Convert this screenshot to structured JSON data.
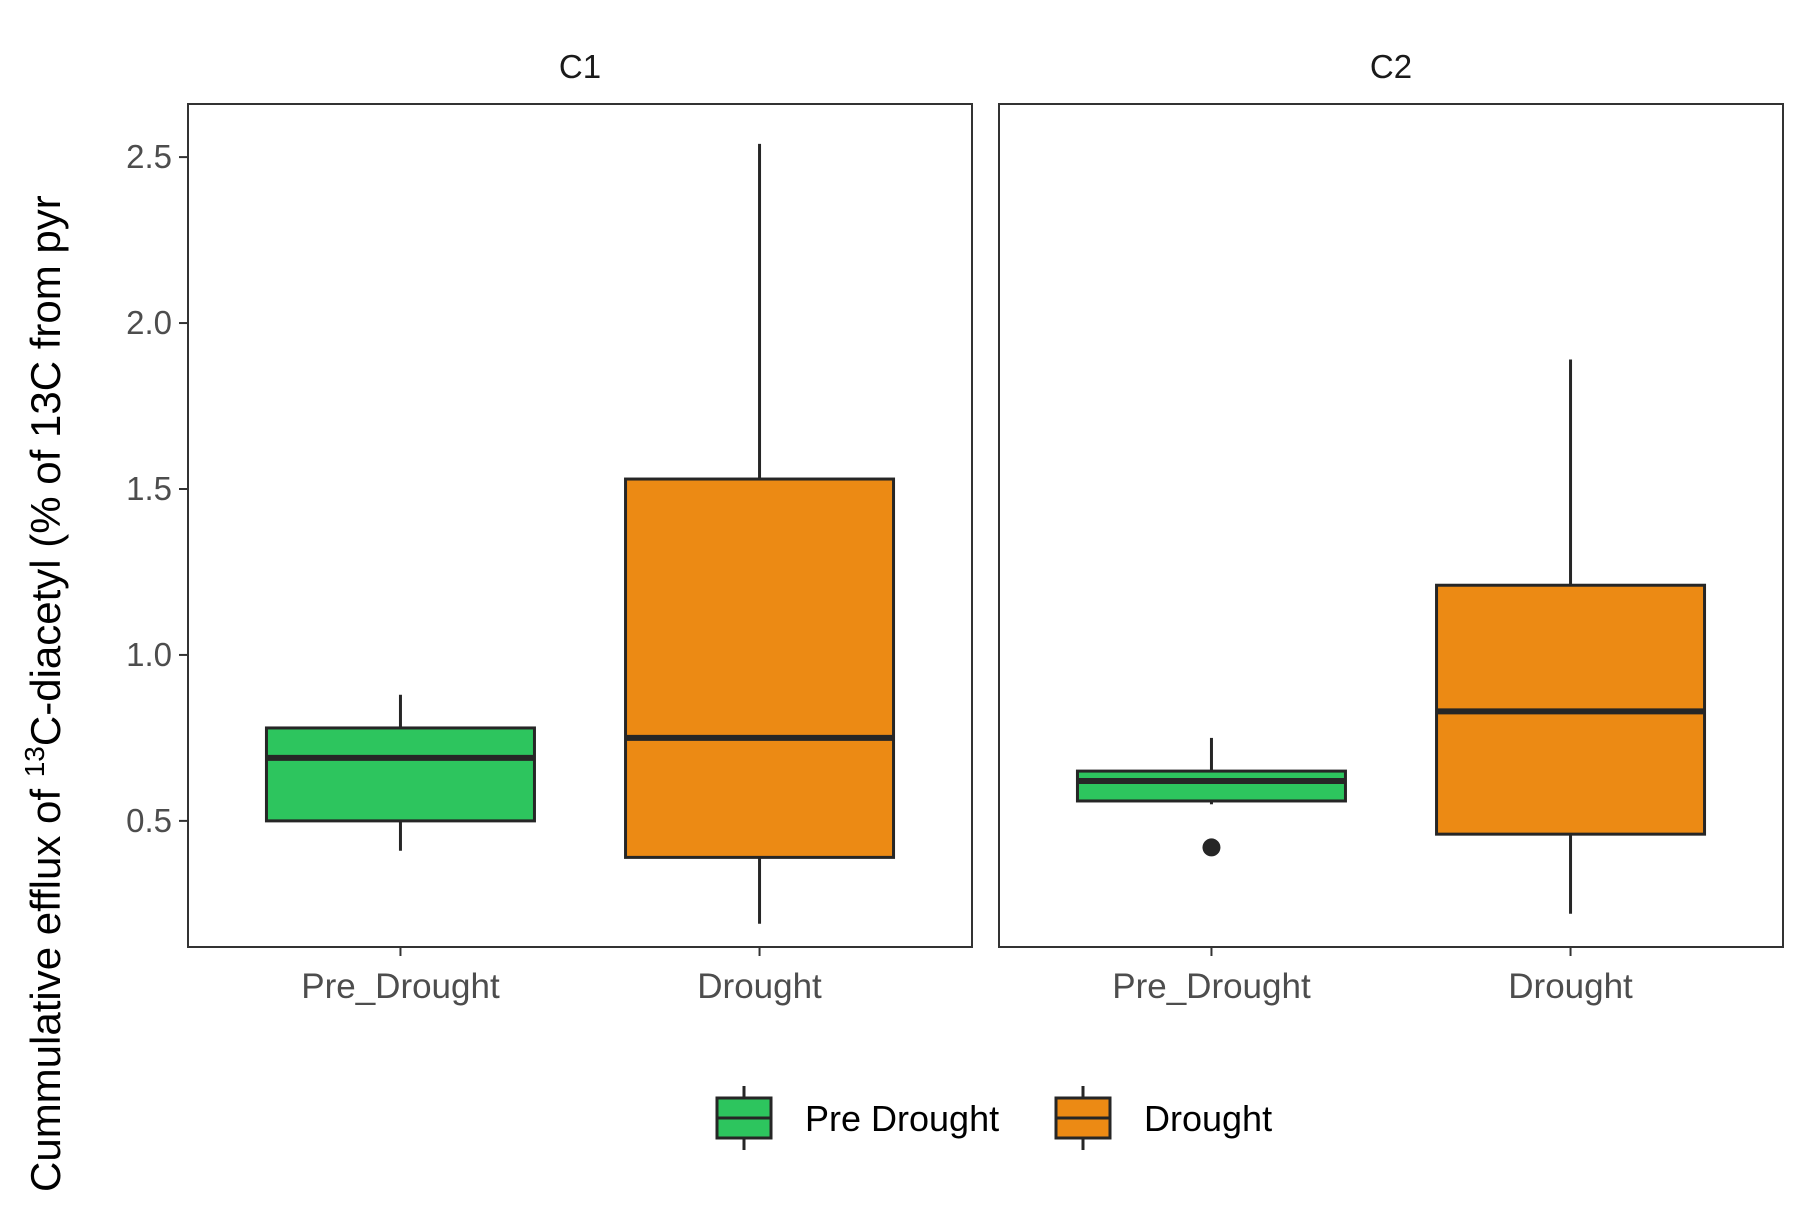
{
  "chart_data": {
    "type": "boxplot",
    "ylabel_prefix": "Cummulative efflux of ",
    "ylabel_superscript": "13",
    "ylabel_suffix": "C-diacetyl (% of 13C from pyr",
    "yticks": [
      "0.5",
      "1.0",
      "1.5",
      "2.0",
      "2.5"
    ],
    "ytick_values": [
      0.5,
      1.0,
      1.5,
      2.0,
      2.5
    ],
    "ylim": [
      0.12,
      2.66
    ],
    "categories": [
      "Pre_Drought",
      "Drought"
    ],
    "grid": false,
    "legend_position": "bottom",
    "legend": [
      {
        "label": "Pre Drought",
        "color": "#2DC55E"
      },
      {
        "label": "Drought",
        "color": "#EC8A14"
      }
    ],
    "panels": [
      {
        "title": "C1",
        "boxes": [
          {
            "category": "Pre_Drought",
            "min": 0.41,
            "q1": 0.5,
            "median": 0.69,
            "q3": 0.78,
            "max": 0.88,
            "outliers": []
          },
          {
            "category": "Drought",
            "min": 0.19,
            "q1": 0.39,
            "median": 0.75,
            "q3": 1.53,
            "max": 2.54,
            "outliers": []
          }
        ]
      },
      {
        "title": "C2",
        "boxes": [
          {
            "category": "Pre_Drought",
            "min": 0.55,
            "q1": 0.56,
            "median": 0.62,
            "q3": 0.65,
            "max": 0.75,
            "outliers": [
              0.42
            ]
          },
          {
            "category": "Drought",
            "min": 0.22,
            "q1": 0.46,
            "median": 0.83,
            "q3": 1.21,
            "max": 1.89,
            "outliers": []
          }
        ]
      }
    ]
  }
}
